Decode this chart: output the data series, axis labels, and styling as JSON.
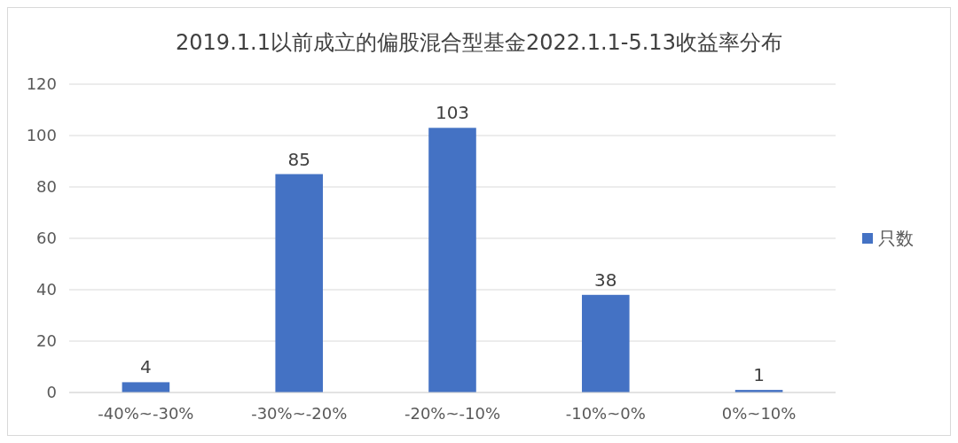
{
  "chart_data": {
    "type": "bar",
    "title": "2019.1.1以前成立的偏股混合型基金2022.1.1-5.13收益率分布",
    "categories": [
      "-40%~-30%",
      "-30%~-20%",
      "-20%~-10%",
      "-10%~0%",
      "0%~10%"
    ],
    "series": [
      {
        "name": "只数",
        "color": "#4472c4",
        "values": [
          4,
          85,
          103,
          38,
          1
        ]
      }
    ],
    "ylim": [
      0,
      120
    ],
    "yticks": [
      0,
      20,
      40,
      60,
      80,
      100,
      120
    ],
    "grid": "y",
    "legend": "right",
    "data_labels": true
  }
}
